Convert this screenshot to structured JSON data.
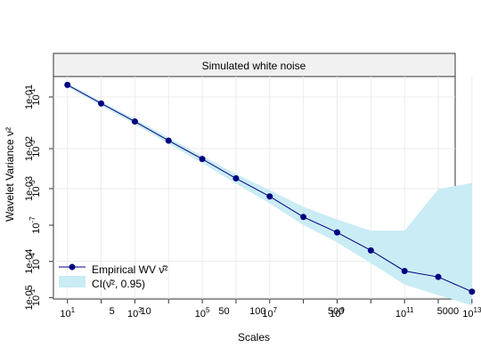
{
  "chart_data": {
    "type": "line",
    "title": "Simulated white noise",
    "xlabel": "Scales",
    "ylabel": "Wavelet Variance ν²",
    "xscale": "log2",
    "yscale": "log10",
    "xlim": [
      1.5,
      5800
    ],
    "ylim": [
      6.5e-05,
      0.21
    ],
    "grid": true,
    "legend_position": "bottom-left",
    "x": [
      2,
      4,
      8,
      16,
      32,
      64,
      128,
      256,
      512,
      1024,
      2048,
      4096,
      8192
    ],
    "series": [
      {
        "name": "Empirical WV ν̂²",
        "color": "#000080",
        "values": [
          0.155,
          0.079,
          0.041,
          0.0205,
          0.0105,
          0.0052,
          0.0027,
          0.00128,
          0.00073,
          0.00038,
          0.00018,
          0.000145,
          8.5e-05
        ]
      }
    ],
    "ci": {
      "name": "CI(ν̂², 0.95)",
      "color": "#c9ecf5",
      "lower": [
        0.145,
        0.073,
        0.037,
        0.0183,
        0.0091,
        0.0043,
        0.0021,
        0.00096,
        0.00051,
        0.00024,
        0.00011,
        7.5e-05,
        5.15e-05
      ],
      "upper": [
        0.166,
        0.085,
        0.045,
        0.0228,
        0.0118,
        0.0061,
        0.0034,
        0.00185,
        0.00117,
        0.00078,
        0.00078,
        0.0035,
        0.0044
      ]
    },
    "bottom_ticks": {
      "superscript_labels": [
        {
          "base": "10",
          "exp": "1",
          "x": 2
        },
        {
          "base": "10",
          "exp": "3",
          "x": 8
        },
        {
          "base": "10",
          "exp": "5",
          "x": 32
        },
        {
          "base": "10",
          "exp": "7",
          "x": 128
        },
        {
          "base": "10",
          "exp": "9",
          "x": 512
        },
        {
          "base": "10",
          "exp": "11",
          "x": 2048
        },
        {
          "base": "10",
          "exp": "13",
          "x": 8192
        }
      ],
      "plain_labels": [
        {
          "text": "5",
          "x": 5
        },
        {
          "text": "10",
          "x": 10
        },
        {
          "text": "50",
          "x": 50
        },
        {
          "text": "100",
          "x": 100
        },
        {
          "text": "500",
          "x": 500
        },
        {
          "text": "5000",
          "x": 5000
        }
      ]
    },
    "left_ticks": {
      "superscript_labels": [
        {
          "base": "10",
          "exp": "-1",
          "y": 0.1
        },
        {
          "base": "10",
          "exp": "-3",
          "y": 0.0153
        },
        {
          "base": "10",
          "exp": "-5",
          "y": 0.00358
        },
        {
          "base": "10",
          "exp": "-7",
          "y": 0.00095
        },
        {
          "base": "10",
          "exp": "-4",
          "y": 0.000255
        },
        {
          "base": "10",
          "exp": "-1",
          "y": 6.85e-05
        }
      ],
      "plain_labels": [
        {
          "text": "1e-01",
          "y": 0.1
        },
        {
          "text": "1e-02",
          "y": 0.0153
        },
        {
          "text": "1e-03",
          "y": 0.00358
        },
        {
          "text": "1e-04",
          "y": 0.000255
        },
        {
          "text": "1e-05",
          "y": 6.85e-05
        }
      ]
    }
  }
}
